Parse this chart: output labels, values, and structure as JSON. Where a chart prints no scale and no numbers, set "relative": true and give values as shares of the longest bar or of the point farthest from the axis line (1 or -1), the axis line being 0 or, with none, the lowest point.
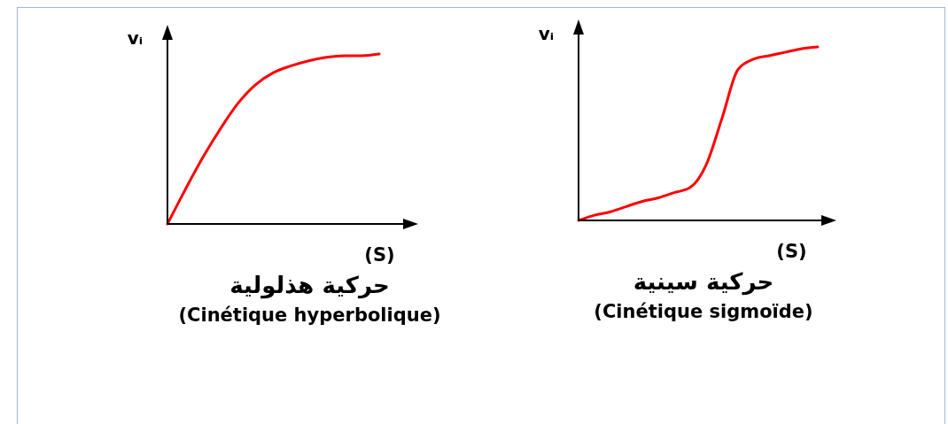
{
  "chart_data": [
    {
      "type": "line",
      "title": "حركية هذلولية",
      "subtitle": "(Cinétique hyperbolique)",
      "xlabel": "(S)",
      "ylabel": "vᵢ",
      "relative": true,
      "categories": [
        null,
        null,
        null,
        null,
        null,
        null,
        null,
        null,
        null,
        null,
        null,
        null,
        null
      ],
      "series": [
        {
          "color": "#ff0000",
          "values": [
            0,
            0.2,
            0.39,
            0.56,
            0.71,
            0.82,
            0.89,
            0.93,
            0.96,
            0.98,
            0.99,
            0.99,
            1
          ]
        }
      ]
    },
    {
      "type": "line",
      "title": "حركية سينية",
      "subtitle": "(Cinétique sigmoïde)",
      "xlabel": "(S)",
      "ylabel": "vᵢ",
      "relative": true,
      "categories": [
        null,
        null,
        null,
        null,
        null,
        null,
        null,
        null,
        null,
        null,
        null,
        null,
        null,
        null,
        null,
        null
      ],
      "series": [
        {
          "color": "#ff0000",
          "values": [
            0,
            0.03,
            0.05,
            0.08,
            0.11,
            0.13,
            0.16,
            0.19,
            0.32,
            0.59,
            0.87,
            0.93,
            0.95,
            0.97,
            0.99,
            1
          ]
        }
      ]
    }
  ]
}
